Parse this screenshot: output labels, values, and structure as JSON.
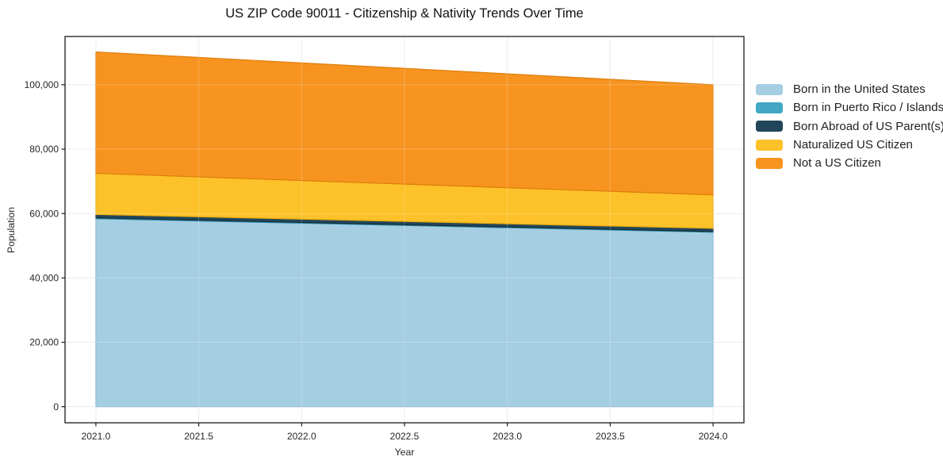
{
  "chart_data": {
    "type": "area",
    "stacked": true,
    "title": "US ZIP Code 90011 - Citizenship & Nativity Trends Over Time",
    "xlabel": "Year",
    "ylabel": "Population",
    "x": [
      2021,
      2022,
      2023,
      2024
    ],
    "series": [
      {
        "name": "Born in the United States",
        "color": "#a5cee3",
        "edge_color": "#7fb4d5",
        "values": [
          58400,
          57000,
          55600,
          54200
        ]
      },
      {
        "name": "Born in Puerto Rico / Islands",
        "color": "#41a7c4",
        "edge_color": "#2f8aa6",
        "values": [
          250,
          230,
          215,
          200
        ]
      },
      {
        "name": "Born Abroad of US Parent(s)",
        "color": "#21465a",
        "edge_color": "#16303d",
        "values": [
          1050,
          1030,
          1010,
          1000
        ]
      },
      {
        "name": "Naturalized US Citizen",
        "color": "#fdc229",
        "edge_color": "#e5a90f",
        "values": [
          12800,
          12000,
          11200,
          10400
        ]
      },
      {
        "name": "Not a US Citizen",
        "color": "#f7941f",
        "edge_color": "#de7d0d",
        "values": [
          37700,
          36530,
          35370,
          34200
        ]
      }
    ],
    "xticks": {
      "values": [
        2021.0,
        2021.5,
        2022.0,
        2022.5,
        2023.0,
        2023.5,
        2024.0
      ],
      "labels": [
        "2021.0",
        "2021.5",
        "2022.0",
        "2022.5",
        "2023.0",
        "2023.5",
        "2024.0"
      ]
    },
    "yticks": {
      "values": [
        0,
        20000,
        40000,
        60000,
        80000,
        100000
      ],
      "labels": [
        "0",
        "20,000",
        "40,000",
        "60,000",
        "80,000",
        "100,000"
      ]
    },
    "xlim": [
      2020.85,
      2024.15
    ],
    "ylim": [
      -5000,
      115000
    ],
    "grid": true,
    "legend_position": "right-outside",
    "colors": {
      "grid": "#e7e7e7",
      "grid_overlay": "rgba(255,255,255,0.22)",
      "frame": "#1a1a1a",
      "tick_text": "#262626",
      "background": "#ffffff"
    }
  }
}
